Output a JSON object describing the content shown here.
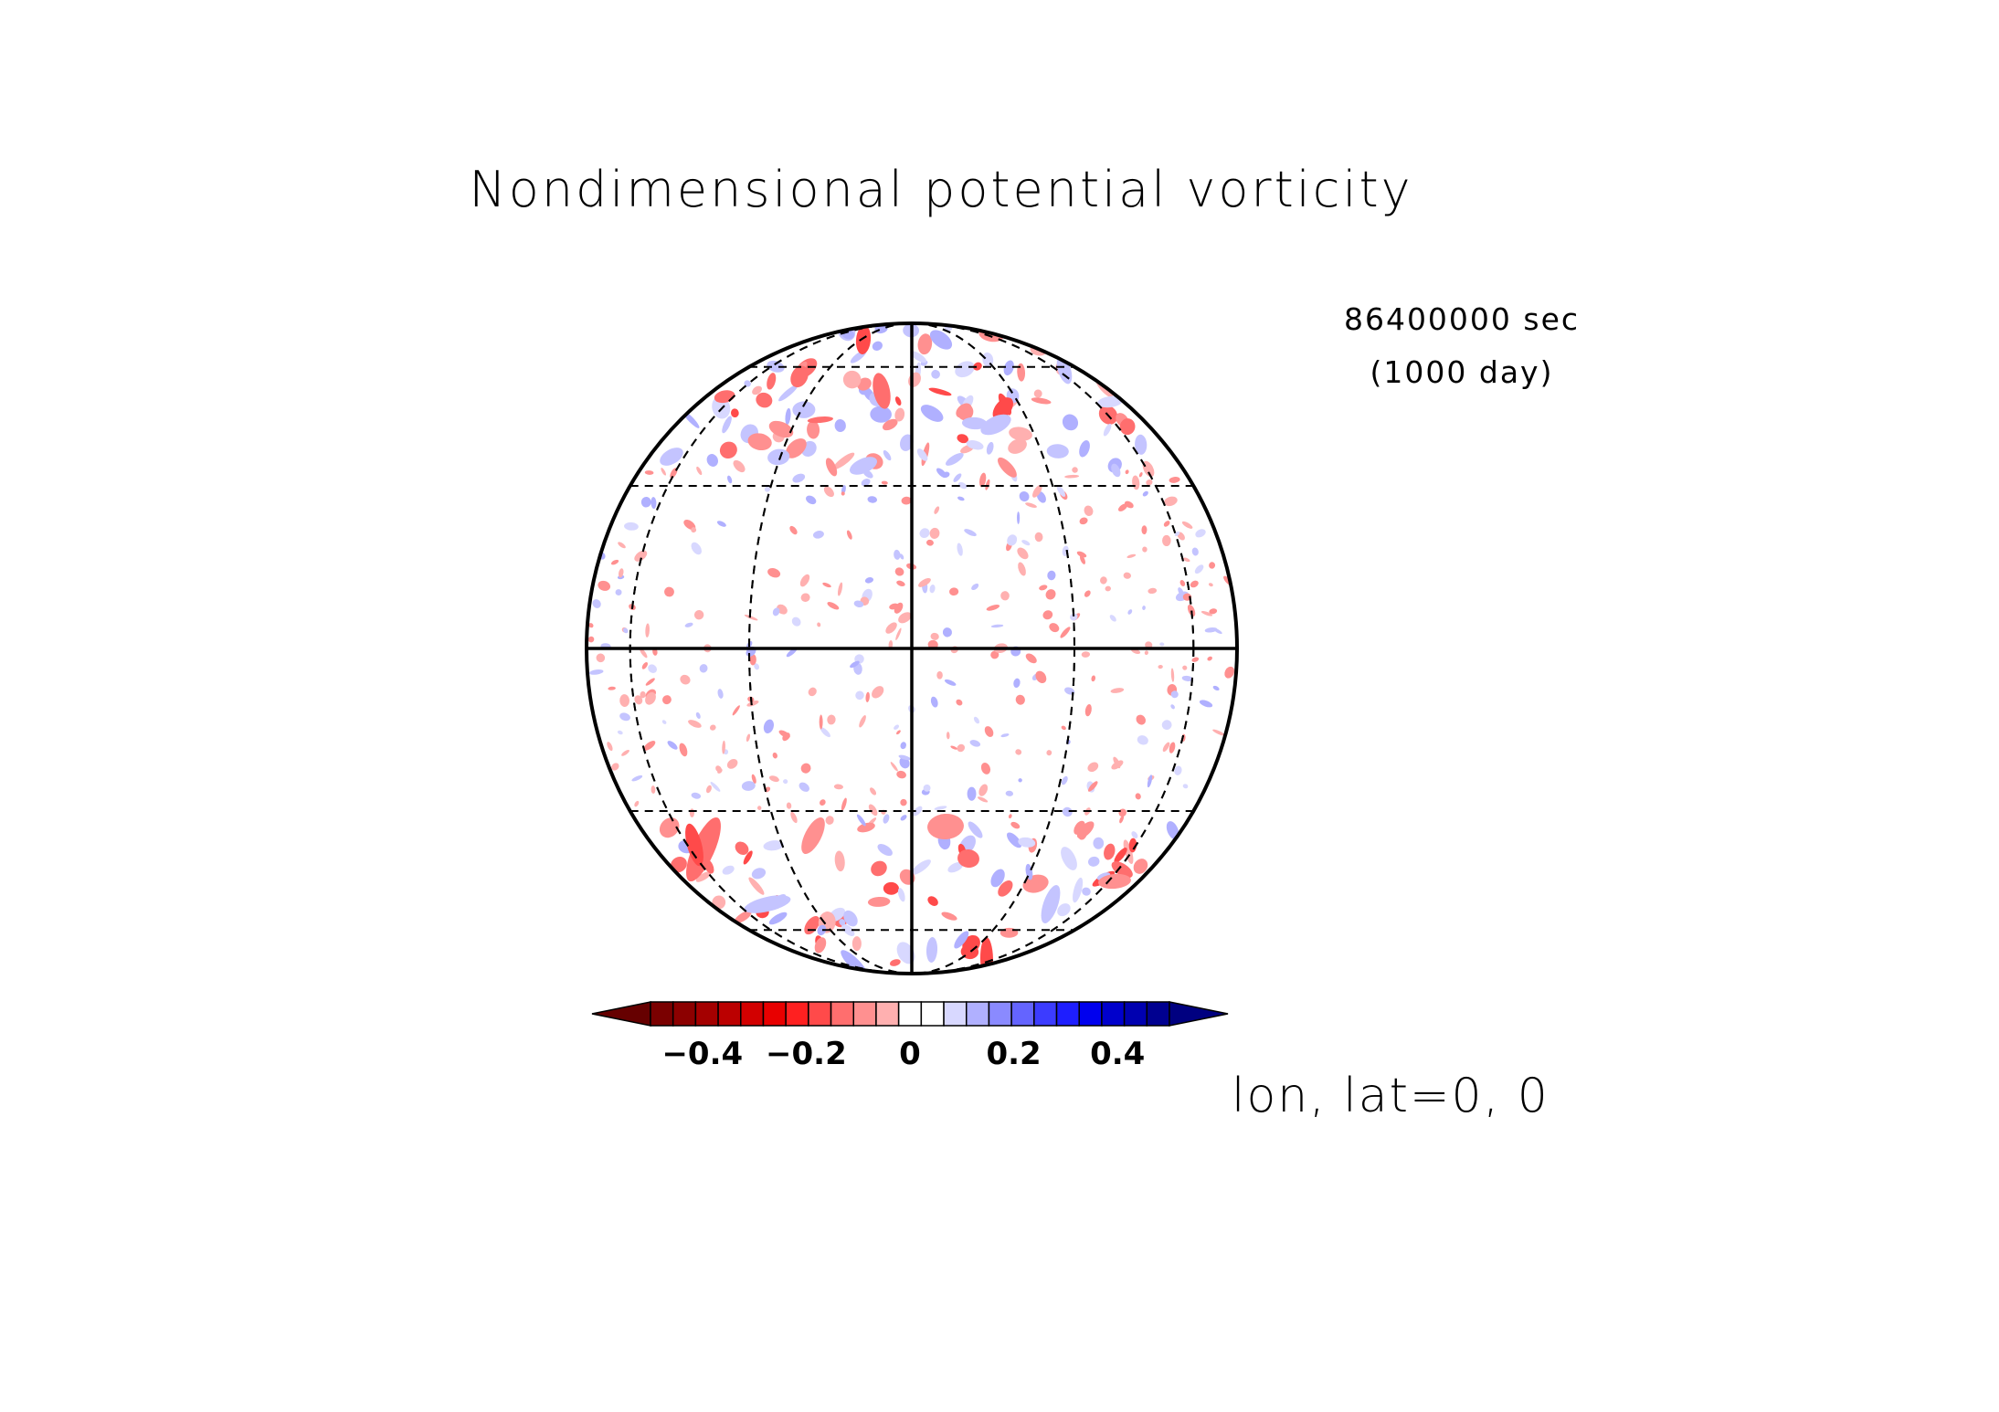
{
  "title": "Nondimensional potential vorticity",
  "time": {
    "seconds": "86400000 sec",
    "days": "(1000 day)"
  },
  "view": "lon, lat=0, 0",
  "projection": {
    "type": "orthographic",
    "center_lon": 0,
    "center_lat": 0,
    "graticule_lat_step": 30,
    "graticule_lon_step": 30
  },
  "colorbar": {
    "min": -0.5,
    "max": 0.5,
    "step": 0.05,
    "extend": "both",
    "ticks": [
      {
        "value": -0.4,
        "label": "−0.4"
      },
      {
        "value": -0.2,
        "label": "−0.2"
      },
      {
        "value": 0,
        "label": "0"
      },
      {
        "value": 0.2,
        "label": "0.2"
      },
      {
        "value": 0.4,
        "label": "0.4"
      }
    ],
    "colors": [
      "#7a0000",
      "#8c0000",
      "#a40000",
      "#bb0000",
      "#d20000",
      "#e80000",
      "#ff2020",
      "#ff4a4a",
      "#ff6e6e",
      "#ff9090",
      "#ffb0b0",
      "#ffffff",
      "#ffffff",
      "#d8d8ff",
      "#b0b0ff",
      "#8a8aff",
      "#6464ff",
      "#3c3cff",
      "#1e1eff",
      "#0000ee",
      "#0000cc",
      "#0000b0",
      "#000090"
    ],
    "under_color": "#660000",
    "over_color": "#000080"
  },
  "chart_data": {
    "type": "heatmap",
    "title": "Nondimensional potential vorticity",
    "colorbar_range": [
      -0.5,
      0.5
    ],
    "time_seconds": 86400000,
    "time_days": 1000
  }
}
